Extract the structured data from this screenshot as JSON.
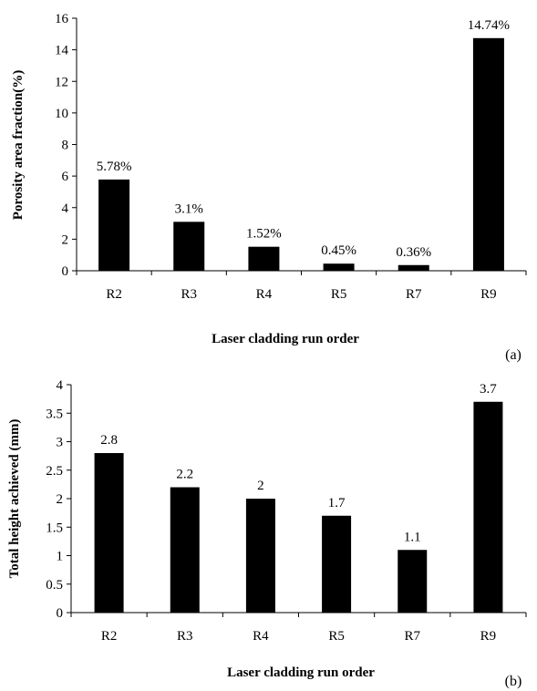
{
  "chart_data": [
    {
      "type": "bar",
      "panel_label": "(a)",
      "categories": [
        "R2",
        "R3",
        "R4",
        "R5",
        "R7",
        "R9"
      ],
      "values": [
        5.78,
        3.1,
        1.52,
        0.45,
        0.36,
        14.74
      ],
      "data_labels": [
        "5.78%",
        "3.1%",
        "1.52%",
        "0.45%",
        "0.36%",
        "14.74%"
      ],
      "xlabel": "Laser cladding run order",
      "ylabel": "Porosity area fraction(%)",
      "ylim": [
        0,
        16
      ],
      "yticks": [
        "0",
        "2",
        "4",
        "6",
        "8",
        "10",
        "12",
        "14",
        "16"
      ],
      "grid": false,
      "bar_color": "#000000"
    },
    {
      "type": "bar",
      "panel_label": "(b)",
      "categories": [
        "R2",
        "R3",
        "R4",
        "R5",
        "R7",
        "R9"
      ],
      "values": [
        2.8,
        2.2,
        2,
        1.7,
        1.1,
        3.7
      ],
      "data_labels": [
        "2.8",
        "2.2",
        "2",
        "1.7",
        "1.1",
        "3.7"
      ],
      "xlabel": "Laser cladding run order",
      "ylabel": "Total height achieved (mm)",
      "ylim": [
        0,
        4
      ],
      "yticks": [
        "0",
        "0.5",
        "1",
        "1.5",
        "2",
        "2.5",
        "3",
        "3.5",
        "4"
      ],
      "grid": false,
      "bar_color": "#000000"
    }
  ]
}
